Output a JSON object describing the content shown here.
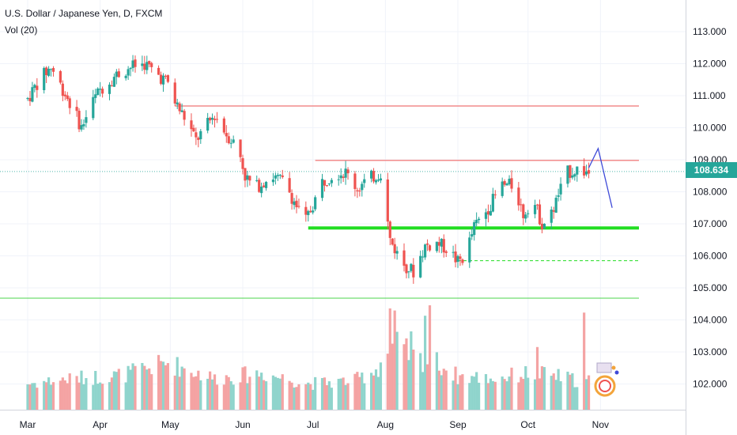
{
  "chart_data": {
    "type": "candlestick",
    "title": "U.S. Dollar / Japanese Yen, D, FXCM",
    "volume_indicator": "Vol (20)",
    "last_price": "108.634",
    "ylim": [
      101.4,
      113.9
    ],
    "y_ticks": [
      {
        "value": 113,
        "label": "113.000"
      },
      {
        "value": 112,
        "label": "112.000"
      },
      {
        "value": 111,
        "label": "111.000"
      },
      {
        "value": 110,
        "label": "110.000"
      },
      {
        "value": 109,
        "label": "109.000"
      },
      {
        "value": 108,
        "label": "108.000"
      },
      {
        "value": 107,
        "label": "107.000"
      },
      {
        "value": 106,
        "label": "106.000"
      },
      {
        "value": 105,
        "label": "105.000"
      },
      {
        "value": 104,
        "label": "104.000"
      },
      {
        "value": 103,
        "label": "103.000"
      },
      {
        "value": 102,
        "label": "102.000"
      }
    ],
    "x_labels": [
      {
        "label": "Mar",
        "day": 0
      },
      {
        "label": "Apr",
        "day": 31
      },
      {
        "label": "May",
        "day": 61
      },
      {
        "label": "Jun",
        "day": 92
      },
      {
        "label": "Jul",
        "day": 122
      },
      {
        "label": "Aug",
        "day": 153
      },
      {
        "label": "Sep",
        "day": 184
      },
      {
        "label": "Oct",
        "day": 214
      },
      {
        "label": "Nov",
        "day": 245
      }
    ],
    "price_path": [
      [
        0,
        110.9
      ],
      [
        5,
        111.5
      ],
      [
        10,
        111.9
      ],
      [
        15,
        111.2
      ],
      [
        20,
        110.5
      ],
      [
        23,
        110.0
      ],
      [
        27,
        110.7
      ],
      [
        31,
        111.2
      ],
      [
        37,
        111.6
      ],
      [
        44,
        111.9
      ],
      [
        50,
        112.0
      ],
      [
        55,
        111.7
      ],
      [
        60,
        111.4
      ],
      [
        63,
        110.8
      ],
      [
        68,
        110.2
      ],
      [
        72,
        109.6
      ],
      [
        76,
        110.0
      ],
      [
        80,
        110.4
      ],
      [
        85,
        109.8
      ],
      [
        90,
        109.4
      ],
      [
        93,
        108.5
      ],
      [
        97,
        108.1
      ],
      [
        104,
        108.5
      ],
      [
        110,
        108.3
      ],
      [
        116,
        107.4
      ],
      [
        119,
        107.1
      ],
      [
        122,
        107.6
      ],
      [
        126,
        108.3
      ],
      [
        131,
        108.6
      ],
      [
        136,
        108.6
      ],
      [
        141,
        108.1
      ],
      [
        146,
        108.4
      ],
      [
        151,
        108.6
      ],
      [
        155,
        106.5
      ],
      [
        160,
        105.8
      ],
      [
        165,
        105.5
      ],
      [
        170,
        106.3
      ],
      [
        175,
        106.4
      ],
      [
        180,
        106.2
      ],
      [
        184,
        105.8
      ],
      [
        187,
        106.0
      ],
      [
        191,
        106.9
      ],
      [
        197,
        107.5
      ],
      [
        203,
        108.2
      ],
      [
        208,
        108.2
      ],
      [
        212,
        107.3
      ],
      [
        216,
        107.8
      ],
      [
        220,
        107.0
      ],
      [
        223,
        107.1
      ],
      [
        227,
        107.9
      ],
      [
        231,
        108.6
      ],
      [
        235,
        108.7
      ],
      [
        240,
        108.6
      ]
    ],
    "volume_path": [
      [
        0,
        0.25
      ],
      [
        20,
        0.3
      ],
      [
        40,
        0.33
      ],
      [
        60,
        0.45
      ],
      [
        80,
        0.3
      ],
      [
        100,
        0.35
      ],
      [
        120,
        0.25
      ],
      [
        140,
        0.28
      ],
      [
        150,
        0.4
      ],
      [
        153,
        0.55
      ],
      [
        158,
        0.62
      ],
      [
        165,
        0.5
      ],
      [
        175,
        0.45
      ],
      [
        184,
        0.32
      ],
      [
        200,
        0.3
      ],
      [
        214,
        0.35
      ],
      [
        225,
        0.33
      ],
      [
        235,
        0.28
      ],
      [
        240,
        0.28
      ]
    ],
    "volume_spikes": [
      {
        "day": 152,
        "level": 0.95
      },
      {
        "day": 155,
        "level": 0.97
      },
      {
        "day": 157,
        "level": 0.95
      },
      {
        "day": 164,
        "level": 0.75
      },
      {
        "day": 170,
        "level": 0.9
      },
      {
        "day": 172,
        "level": 1.0
      },
      {
        "day": 218,
        "level": 0.6
      },
      {
        "day": 238,
        "level": 0.93
      }
    ],
    "levels": [
      {
        "type": "resistance",
        "price": 110.68,
        "from_day": 63,
        "color": "#f28b8b",
        "width": 1.5
      },
      {
        "type": "resistance",
        "price": 108.98,
        "from_day": 123,
        "color": "#f28b8b",
        "width": 1.5
      },
      {
        "type": "support",
        "price": 106.87,
        "from_day": 120,
        "color": "#22dd22",
        "width": 4
      },
      {
        "type": "support-dashed",
        "price": 105.85,
        "from_day": 184,
        "color": "#22dd22",
        "width": 1,
        "dashed": true
      },
      {
        "type": "support",
        "price": 104.68,
        "from_day": 0,
        "color": "#4cd44c",
        "width": 1
      }
    ],
    "projection": [
      [
        240,
        108.75
      ],
      [
        244,
        109.35
      ],
      [
        250,
        107.5
      ]
    ],
    "colors": {
      "up": "#26a69a",
      "down": "#ef5350",
      "up_volume": "#8fd4cc",
      "down_volume": "#f4a3a3",
      "last_price": "#26a69a",
      "projection": "#3e4ad8",
      "grid": "#f0f3fa",
      "axis": "#131722"
    },
    "grid": true
  }
}
